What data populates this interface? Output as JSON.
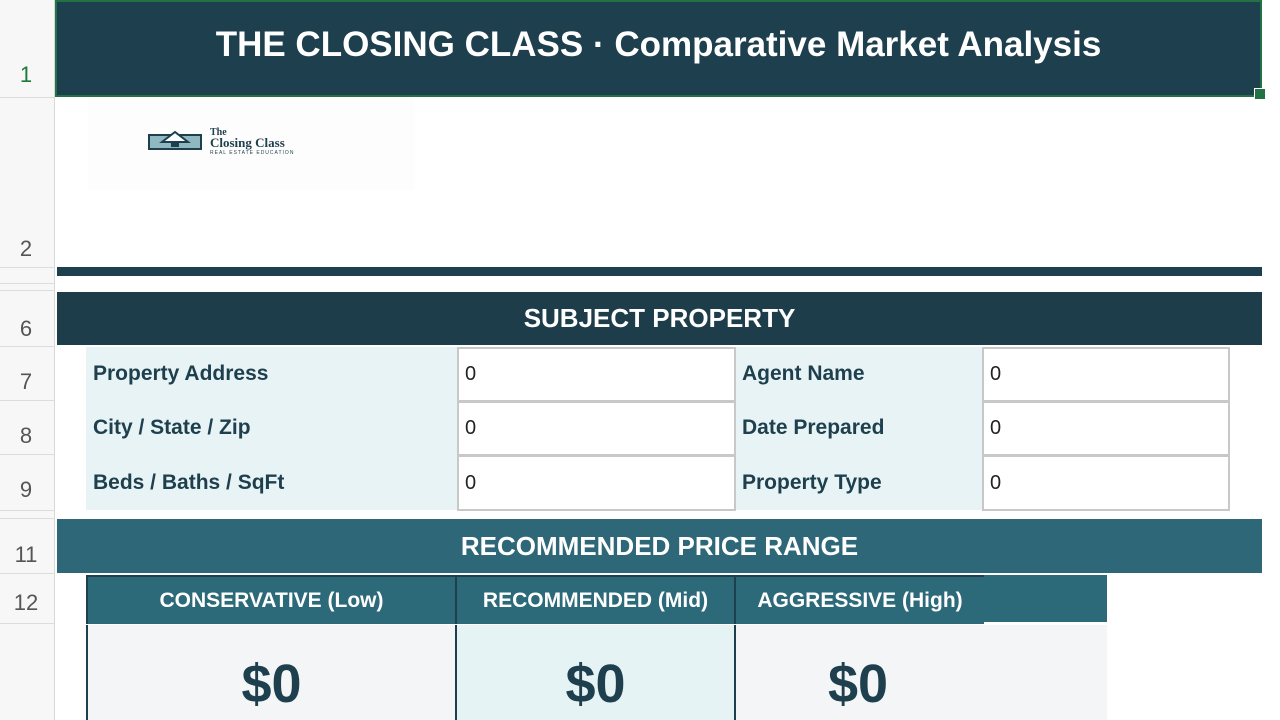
{
  "row_numbers": {
    "r1": "1",
    "r2": "2",
    "r6": "6",
    "r7": "7",
    "r8": "8",
    "r9": "9",
    "r11": "11",
    "r12": "12"
  },
  "header": {
    "title": "THE CLOSING CLASS  ·  Comparative Market Analysis"
  },
  "logo": {
    "line1": "The",
    "line2": "Closing Class",
    "line3": "REAL ESTATE EDUCATION"
  },
  "subject": {
    "title": "SUBJECT PROPERTY",
    "fields": [
      {
        "label": "Property Address",
        "value": "0"
      },
      {
        "label": "City / State / Zip",
        "value": "0"
      },
      {
        "label": "Beds / Baths / SqFt",
        "value": "0"
      },
      {
        "label": "Agent Name",
        "value": "0"
      },
      {
        "label": "Date Prepared",
        "value": "0"
      },
      {
        "label": "Property Type",
        "value": "0"
      }
    ]
  },
  "price_range": {
    "title": "RECOMMENDED PRICE RANGE",
    "columns": [
      {
        "label": "CONSERVATIVE (Low)",
        "value": "$0"
      },
      {
        "label": "RECOMMENDED (Mid)",
        "value": "$0"
      },
      {
        "label": "AGGRESSIVE (High)",
        "value": "$0"
      }
    ]
  },
  "colors": {
    "dark": "#1e3f4d",
    "teal": "#2d6a79",
    "light": "#e8f3f5",
    "selection": "#217346"
  }
}
